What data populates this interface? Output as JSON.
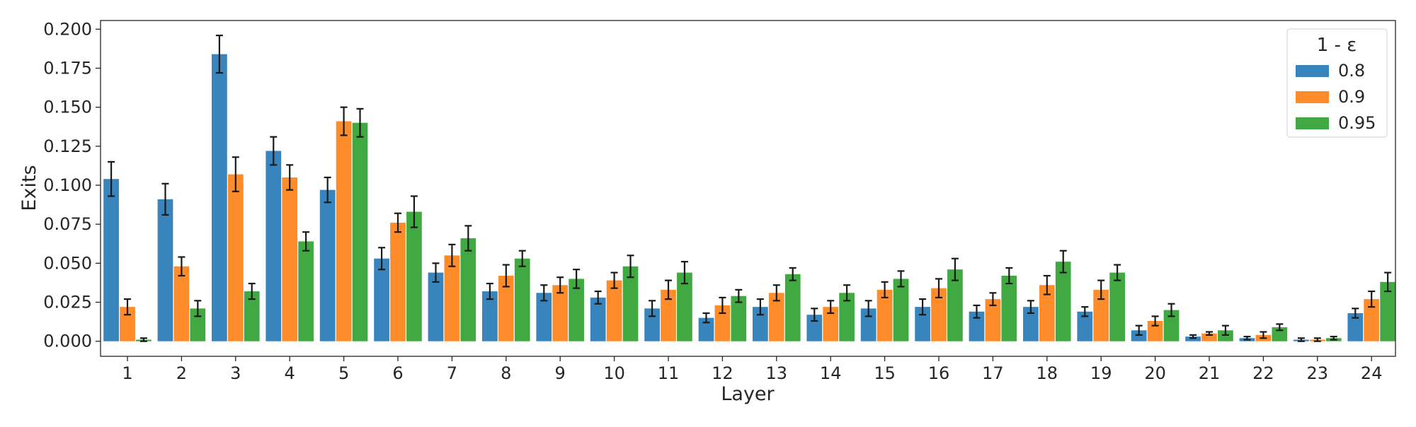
{
  "chart_data": {
    "type": "bar",
    "title": "",
    "xlabel": "Layer",
    "ylabel": "Exits",
    "ylim": [
      -0.011,
      0.207
    ],
    "yticks": [
      "0.000",
      "0.025",
      "0.050",
      "0.075",
      "0.100",
      "0.125",
      "0.150",
      "0.175",
      "0.200"
    ],
    "categories": [
      "1",
      "2",
      "3",
      "4",
      "5",
      "6",
      "7",
      "8",
      "9",
      "10",
      "11",
      "12",
      "13",
      "14",
      "15",
      "16",
      "17",
      "18",
      "19",
      "20",
      "21",
      "22",
      "23",
      "24"
    ],
    "grid": false,
    "legend": {
      "title": "1 - ε",
      "placement": "top-right"
    },
    "series": [
      {
        "name": "0.8",
        "color": "#3884bd",
        "values": [
          0.104,
          0.091,
          0.184,
          0.122,
          0.097,
          0.053,
          0.044,
          0.032,
          0.031,
          0.028,
          0.021,
          0.015,
          0.022,
          0.017,
          0.021,
          0.022,
          0.019,
          0.022,
          0.019,
          0.007,
          0.003,
          0.002,
          0.001,
          0.018
        ],
        "errors": [
          0.011,
          0.01,
          0.012,
          0.009,
          0.008,
          0.007,
          0.006,
          0.005,
          0.005,
          0.004,
          0.005,
          0.003,
          0.005,
          0.004,
          0.005,
          0.005,
          0.004,
          0.004,
          0.003,
          0.003,
          0.001,
          0.001,
          0.001,
          0.003
        ]
      },
      {
        "name": "0.9",
        "color": "#fe8c2a",
        "values": [
          0.022,
          0.048,
          0.107,
          0.105,
          0.141,
          0.076,
          0.055,
          0.042,
          0.036,
          0.039,
          0.033,
          0.023,
          0.031,
          0.022,
          0.033,
          0.034,
          0.027,
          0.036,
          0.033,
          0.013,
          0.005,
          0.004,
          0.001,
          0.027
        ],
        "errors": [
          0.005,
          0.006,
          0.011,
          0.008,
          0.009,
          0.006,
          0.007,
          0.007,
          0.005,
          0.005,
          0.006,
          0.005,
          0.005,
          0.004,
          0.005,
          0.006,
          0.004,
          0.006,
          0.006,
          0.003,
          0.001,
          0.002,
          0.001,
          0.005
        ]
      },
      {
        "name": "0.95",
        "color": "#41a941",
        "values": [
          0.001,
          0.021,
          0.032,
          0.064,
          0.14,
          0.083,
          0.066,
          0.053,
          0.04,
          0.048,
          0.044,
          0.029,
          0.043,
          0.031,
          0.04,
          0.046,
          0.042,
          0.051,
          0.044,
          0.02,
          0.007,
          0.009,
          0.002,
          0.038
        ],
        "errors": [
          0.001,
          0.005,
          0.005,
          0.006,
          0.009,
          0.01,
          0.008,
          0.005,
          0.006,
          0.007,
          0.007,
          0.004,
          0.004,
          0.005,
          0.005,
          0.007,
          0.005,
          0.007,
          0.005,
          0.004,
          0.003,
          0.002,
          0.001,
          0.006
        ]
      }
    ]
  }
}
